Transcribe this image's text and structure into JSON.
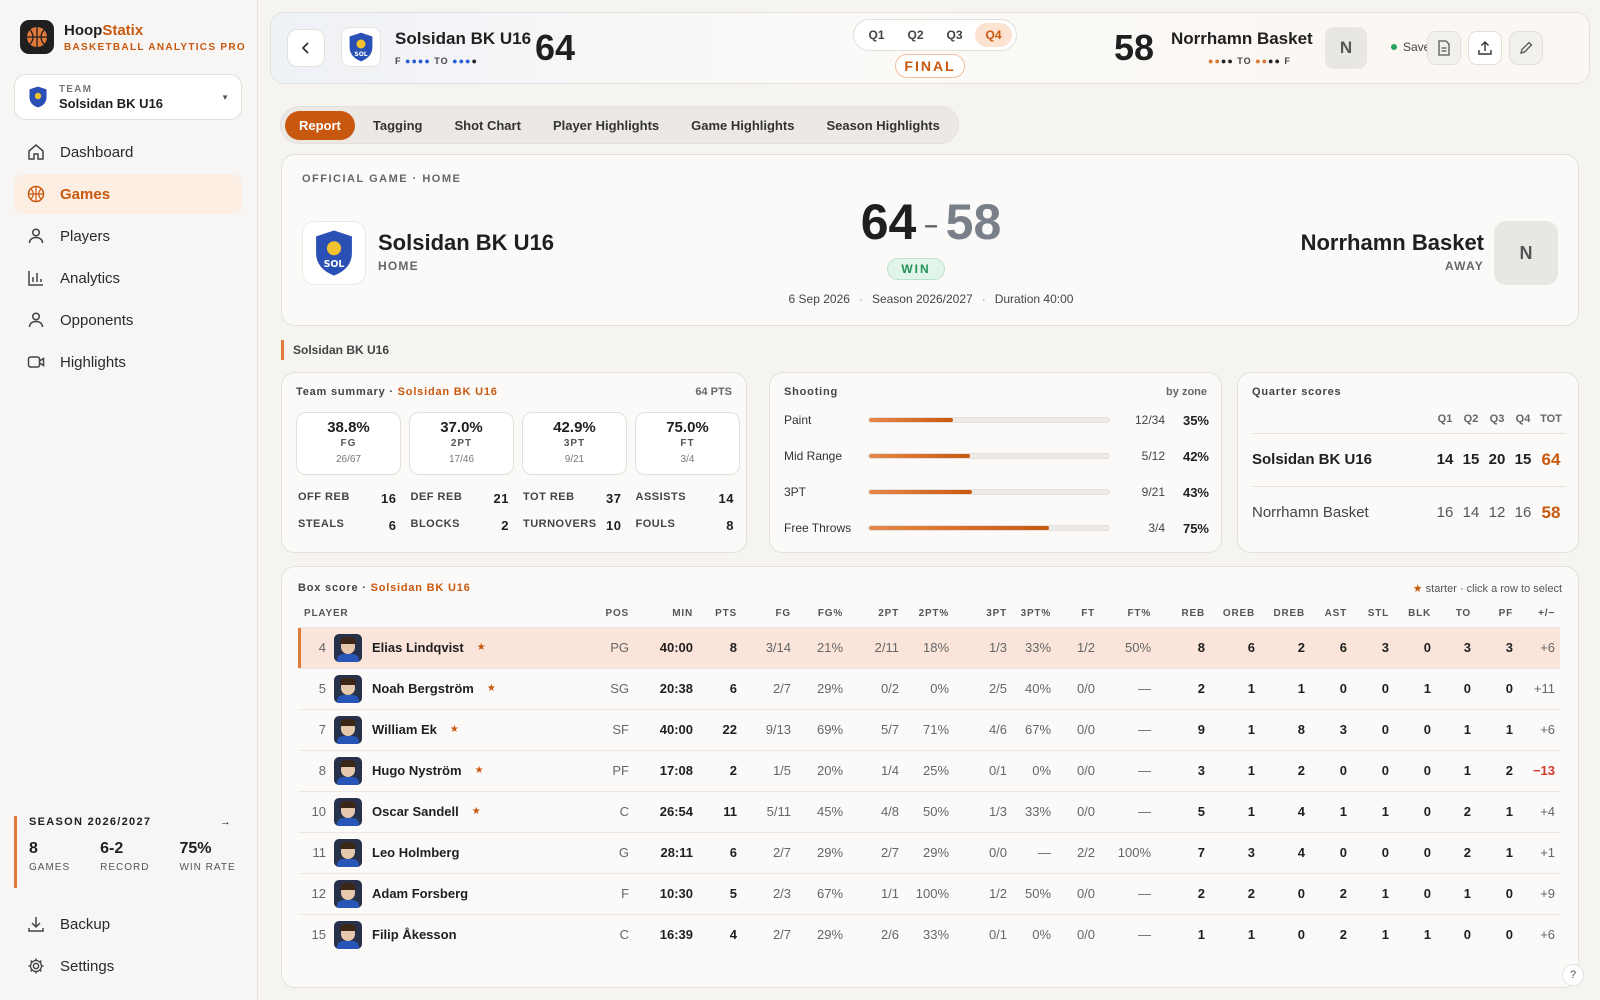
{
  "brand": {
    "name_a": "Hoop",
    "name_b": "Statix",
    "subtitle": "BASKETBALL ANALYTICS PRO"
  },
  "team_selector": {
    "label": "TEAM",
    "value": "Solsidan BK U16"
  },
  "nav": [
    {
      "label": "Dashboard",
      "icon": "home-icon",
      "active": false
    },
    {
      "label": "Games",
      "icon": "basketball-icon",
      "active": true
    },
    {
      "label": "Players",
      "icon": "user-icon",
      "active": false
    },
    {
      "label": "Analytics",
      "icon": "bar-chart-icon",
      "active": false
    },
    {
      "label": "Opponents",
      "icon": "user-icon",
      "active": false
    },
    {
      "label": "Highlights",
      "icon": "video-icon",
      "active": false
    }
  ],
  "season": {
    "title": "SEASON 2026/2027",
    "stats": [
      {
        "value": "8",
        "label": "GAMES"
      },
      {
        "value": "6-2",
        "label": "RECORD"
      },
      {
        "value": "75%",
        "label": "WIN RATE"
      }
    ]
  },
  "bottom_nav": [
    {
      "label": "Backup",
      "icon": "download-icon"
    },
    {
      "label": "Settings",
      "icon": "gear-icon"
    }
  ],
  "topbar": {
    "home": {
      "name": "Solsidan BK U16",
      "score": "64",
      "to_prefix": "F",
      "to_label": "TO",
      "timeouts_left_used": 4,
      "timeouts_right_used": 3,
      "logo_text": "SOL"
    },
    "away": {
      "name": "Norrhamn Basket",
      "score": "58",
      "to_label": "TO",
      "to_suffix": "F",
      "initial": "N"
    },
    "quarters": [
      "Q1",
      "Q2",
      "Q3",
      "Q4"
    ],
    "active_quarter": "Q4",
    "status": "FINAL",
    "saved_label": "Saved"
  },
  "tabs": [
    "Report",
    "Tagging",
    "Shot Chart",
    "Player Highlights",
    "Game Highlights",
    "Season Highlights"
  ],
  "active_tab": "Report",
  "hero": {
    "official": "OFFICIAL GAME · HOME",
    "home_name": "Solsidan BK U16",
    "home_role": "HOME",
    "home_score": "64",
    "away_score": "58",
    "result": "WIN",
    "date": "6 Sep 2026",
    "season": "Season 2026/2027",
    "duration": "Duration 40:00",
    "away_name": "Norrhamn Basket",
    "away_role": "AWAY",
    "away_initial": "N"
  },
  "section_label": "Solsidan BK U16",
  "team_summary": {
    "title": "Team summary · ",
    "team": "Solsidan BK U16",
    "points": "64 PTS",
    "pct": [
      {
        "value": "38.8%",
        "label": "FG",
        "made": "26/67"
      },
      {
        "value": "37.0%",
        "label": "2PT",
        "made": "17/46"
      },
      {
        "value": "42.9%",
        "label": "3PT",
        "made": "9/21"
      },
      {
        "value": "75.0%",
        "label": "FT",
        "made": "3/4"
      }
    ],
    "stats": [
      {
        "label": "OFF REB",
        "value": "16"
      },
      {
        "label": "DEF REB",
        "value": "21"
      },
      {
        "label": "TOT REB",
        "value": "37"
      },
      {
        "label": "ASSISTS",
        "value": "14"
      },
      {
        "label": "STEALS",
        "value": "6"
      },
      {
        "label": "BLOCKS",
        "value": "2"
      },
      {
        "label": "TURNOVERS",
        "value": "10"
      },
      {
        "label": "FOULS",
        "value": "8"
      }
    ]
  },
  "shooting": {
    "title": "Shooting",
    "subtitle": "by zone",
    "zones": [
      {
        "name": "Paint",
        "ratio": "12/34",
        "pct": "35%",
        "fraction": 0.35
      },
      {
        "name": "Mid Range",
        "ratio": "5/12",
        "pct": "42%",
        "fraction": 0.42
      },
      {
        "name": "3PT",
        "ratio": "9/21",
        "pct": "43%",
        "fraction": 0.43
      },
      {
        "name": "Free Throws",
        "ratio": "3/4",
        "pct": "75%",
        "fraction": 0.75
      }
    ]
  },
  "quarter_scores": {
    "title": "Quarter scores",
    "headers": [
      "Q1",
      "Q2",
      "Q3",
      "Q4",
      "TOT"
    ],
    "rows": [
      {
        "team": "Solsidan BK U16",
        "q": [
          "14",
          "15",
          "20",
          "15"
        ],
        "tot": "64"
      },
      {
        "team": "Norrhamn Basket",
        "q": [
          "16",
          "14",
          "12",
          "16"
        ],
        "tot": "58"
      }
    ]
  },
  "box_score": {
    "title": "Box score · ",
    "team": "Solsidan BK U16",
    "legend_star": "★",
    "legend": " starter · click a row to select",
    "columns": [
      "PLAYER",
      "POS",
      "MIN",
      "PTS",
      "FG",
      "FG%",
      "2PT",
      "2PT%",
      "3PT",
      "3PT%",
      "FT",
      "FT%",
      "REB",
      "OREB",
      "DREB",
      "AST",
      "STL",
      "BLK",
      "TO",
      "PF",
      "+/−"
    ],
    "rows": [
      {
        "num": "4",
        "name": "Elias Lindqvist",
        "starter": true,
        "pos": "PG",
        "min": "40:00",
        "pts": "8",
        "fg": "3/14",
        "fgp": "21%",
        "p2": "2/11",
        "p2p": "18%",
        "p3": "1/3",
        "p3p": "33%",
        "ft": "1/2",
        "ftp": "50%",
        "reb": "8",
        "oreb": "6",
        "dreb": "2",
        "ast": "6",
        "stl": "3",
        "blk": "0",
        "to": "3",
        "pf": "3",
        "pm": "+6",
        "selected": true
      },
      {
        "num": "5",
        "name": "Noah Bergström",
        "starter": true,
        "pos": "SG",
        "min": "20:38",
        "pts": "6",
        "fg": "2/7",
        "fgp": "29%",
        "p2": "0/2",
        "p2p": "0%",
        "p3": "2/5",
        "p3p": "40%",
        "ft": "0/0",
        "ftp": "—",
        "reb": "2",
        "oreb": "1",
        "dreb": "1",
        "ast": "0",
        "stl": "0",
        "blk": "1",
        "to": "0",
        "pf": "0",
        "pm": "+11"
      },
      {
        "num": "7",
        "name": "William Ek",
        "starter": true,
        "pos": "SF",
        "min": "40:00",
        "pts": "22",
        "fg": "9/13",
        "fgp": "69%",
        "p2": "5/7",
        "p2p": "71%",
        "p3": "4/6",
        "p3p": "67%",
        "ft": "0/0",
        "ftp": "—",
        "reb": "9",
        "oreb": "1",
        "dreb": "8",
        "ast": "3",
        "stl": "0",
        "blk": "0",
        "to": "1",
        "pf": "1",
        "pm": "+6"
      },
      {
        "num": "8",
        "name": "Hugo Nyström",
        "starter": true,
        "pos": "PF",
        "min": "17:08",
        "pts": "2",
        "fg": "1/5",
        "fgp": "20%",
        "p2": "1/4",
        "p2p": "25%",
        "p3": "0/1",
        "p3p": "0%",
        "ft": "0/0",
        "ftp": "—",
        "reb": "3",
        "oreb": "1",
        "dreb": "2",
        "ast": "0",
        "stl": "0",
        "blk": "0",
        "to": "1",
        "pf": "2",
        "pm": "−13",
        "negative": true
      },
      {
        "num": "10",
        "name": "Oscar Sandell",
        "starter": true,
        "pos": "C",
        "min": "26:54",
        "pts": "11",
        "fg": "5/11",
        "fgp": "45%",
        "p2": "4/8",
        "p2p": "50%",
        "p3": "1/3",
        "p3p": "33%",
        "ft": "0/0",
        "ftp": "—",
        "reb": "5",
        "oreb": "1",
        "dreb": "4",
        "ast": "1",
        "stl": "1",
        "blk": "0",
        "to": "2",
        "pf": "1",
        "pm": "+4"
      },
      {
        "num": "11",
        "name": "Leo Holmberg",
        "starter": false,
        "pos": "G",
        "min": "28:11",
        "pts": "6",
        "fg": "2/7",
        "fgp": "29%",
        "p2": "2/7",
        "p2p": "29%",
        "p3": "0/0",
        "p3p": "—",
        "ft": "2/2",
        "ftp": "100%",
        "reb": "7",
        "oreb": "3",
        "dreb": "4",
        "ast": "0",
        "stl": "0",
        "blk": "0",
        "to": "2",
        "pf": "1",
        "pm": "+1"
      },
      {
        "num": "12",
        "name": "Adam Forsberg",
        "starter": false,
        "pos": "F",
        "min": "10:30",
        "pts": "5",
        "fg": "2/3",
        "fgp": "67%",
        "p2": "1/1",
        "p2p": "100%",
        "p3": "1/2",
        "p3p": "50%",
        "ft": "0/0",
        "ftp": "—",
        "reb": "2",
        "oreb": "2",
        "dreb": "0",
        "ast": "2",
        "stl": "1",
        "blk": "0",
        "to": "1",
        "pf": "0",
        "pm": "+9"
      },
      {
        "num": "15",
        "name": "Filip Åkesson",
        "starter": false,
        "pos": "C",
        "min": "16:39",
        "pts": "4",
        "fg": "2/7",
        "fgp": "29%",
        "p2": "2/6",
        "p2p": "33%",
        "p3": "0/1",
        "p3p": "0%",
        "ft": "0/0",
        "ftp": "—",
        "reb": "1",
        "oreb": "1",
        "dreb": "0",
        "ast": "2",
        "stl": "1",
        "blk": "1",
        "to": "0",
        "pf": "0",
        "pm": "+6"
      }
    ]
  },
  "help_label": "?",
  "colors": {
    "accent": "#c9580f",
    "win": "#229155",
    "negative": "#d13b2f",
    "home_dot": "#2a5bd7",
    "away_dot": "#d9762f"
  }
}
